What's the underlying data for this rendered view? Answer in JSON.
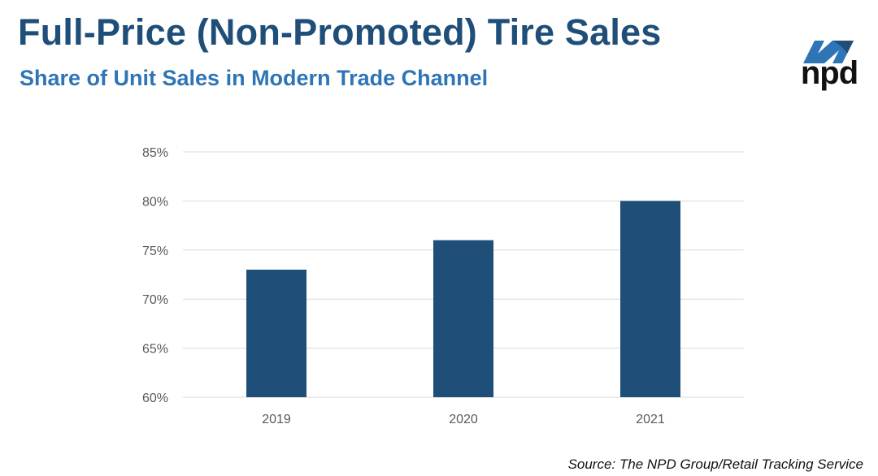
{
  "header": {
    "title": "Full-Price (Non-Promoted) Tire Sales",
    "subtitle": "Share of Unit Sales in Modern Trade Channel"
  },
  "logo": {
    "text": "npd",
    "icon": "npd-logo-icon",
    "colors": [
      "#1f4e79",
      "#2e75b6"
    ]
  },
  "footer": {
    "source": "Source: The NPD Group/Retail Tracking Service"
  },
  "colors": {
    "bar": "#1f4e79",
    "title": "#1f4e79",
    "subtitle": "#2e75b6",
    "grid": "#d9d9d9"
  },
  "chart_data": {
    "type": "bar",
    "categories": [
      "2019",
      "2020",
      "2021"
    ],
    "values": [
      73,
      76,
      80
    ],
    "ylim": [
      60,
      85
    ],
    "yticks": [
      60,
      65,
      70,
      75,
      80,
      85
    ],
    "ytick_labels": [
      "60%",
      "65%",
      "70%",
      "75%",
      "80%",
      "85%"
    ],
    "grid": true,
    "legend": "none"
  }
}
